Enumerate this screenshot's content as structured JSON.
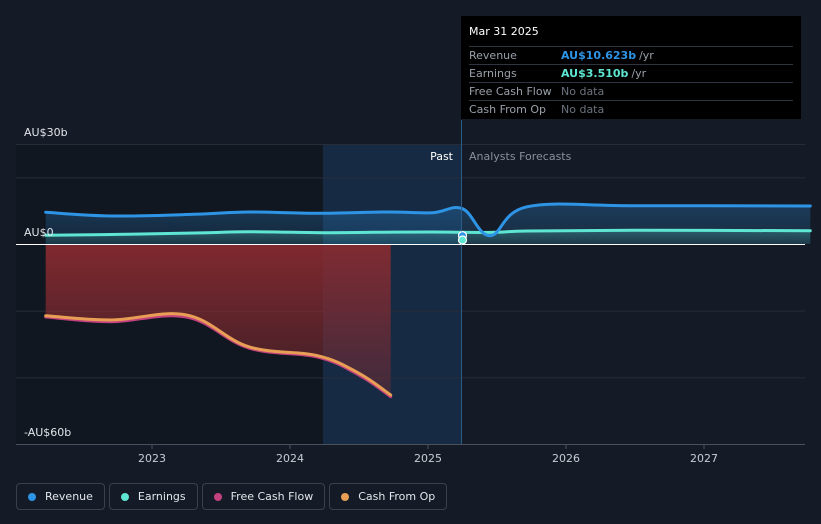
{
  "chart_data": {
    "type": "line",
    "y_axis_labels": [
      "AU$30b",
      "AU$0",
      "-AU$60b"
    ],
    "ylim": [
      -60,
      30
    ],
    "x_ticks": [
      "2023",
      "2024",
      "2025",
      "2026",
      "2027"
    ],
    "past_label": "Past",
    "forecast_label": "Analysts Forecasts",
    "series": [
      {
        "name": "Revenue",
        "color": "#2e94e6",
        "points": [
          [
            2022.23,
            9.5
          ],
          [
            2022.7,
            8.4
          ],
          [
            2023.3,
            8.9
          ],
          [
            2023.7,
            9.6
          ],
          [
            2024.2,
            9.2
          ],
          [
            2024.7,
            9.6
          ],
          [
            2025.03,
            9.4
          ],
          [
            2025.25,
            10.6
          ],
          [
            2025.45,
            2.5
          ],
          [
            2025.72,
            11.2
          ],
          [
            2026.5,
            11.5
          ],
          [
            2027.77,
            11.4
          ]
        ]
      },
      {
        "name": "Earnings",
        "color": "#5ee6d2",
        "points": [
          [
            2022.23,
            2.6
          ],
          [
            2022.8,
            2.9
          ],
          [
            2023.4,
            3.4
          ],
          [
            2023.7,
            3.7
          ],
          [
            2024.25,
            3.4
          ],
          [
            2024.6,
            3.5
          ],
          [
            2025.03,
            3.6
          ],
          [
            2025.25,
            3.5
          ],
          [
            2025.5,
            3.5
          ],
          [
            2025.72,
            3.9
          ],
          [
            2026.5,
            4.1
          ],
          [
            2027.77,
            4.0
          ]
        ]
      },
      {
        "name": "Free Cash Flow",
        "color": "#c3417e",
        "points": [
          [
            2022.23,
            -21.9
          ],
          [
            2022.7,
            -23.3
          ],
          [
            2023.25,
            -21.9
          ],
          [
            2023.7,
            -31.2
          ],
          [
            2024.2,
            -33.9
          ],
          [
            2024.5,
            -39.3
          ],
          [
            2024.73,
            -45.8
          ]
        ]
      },
      {
        "name": "Cash From Op",
        "color": "#e89f55",
        "points": [
          [
            2022.23,
            -21.5
          ],
          [
            2022.7,
            -22.8
          ],
          [
            2023.25,
            -21.3
          ],
          [
            2023.7,
            -30.8
          ],
          [
            2024.2,
            -33.5
          ],
          [
            2024.5,
            -38.8
          ],
          [
            2024.73,
            -45.3
          ]
        ]
      }
    ]
  },
  "tooltip": {
    "date": "Mar 31 2025",
    "rows": [
      {
        "label": "Revenue",
        "value": "AU$10.623b",
        "unit": "/yr",
        "color": "#2e94e6"
      },
      {
        "label": "Earnings",
        "value": "AU$3.510b",
        "unit": "/yr",
        "color": "#5ee6d2"
      },
      {
        "label": "Free Cash Flow",
        "value": "No data"
      },
      {
        "label": "Cash From Op",
        "value": "No data"
      }
    ]
  },
  "legend": [
    {
      "label": "Revenue",
      "color": "#2e94e6"
    },
    {
      "label": "Earnings",
      "color": "#5ee6d2"
    },
    {
      "label": "Free Cash Flow",
      "color": "#c3417e"
    },
    {
      "label": "Cash From Op",
      "color": "#e89f55"
    }
  ]
}
